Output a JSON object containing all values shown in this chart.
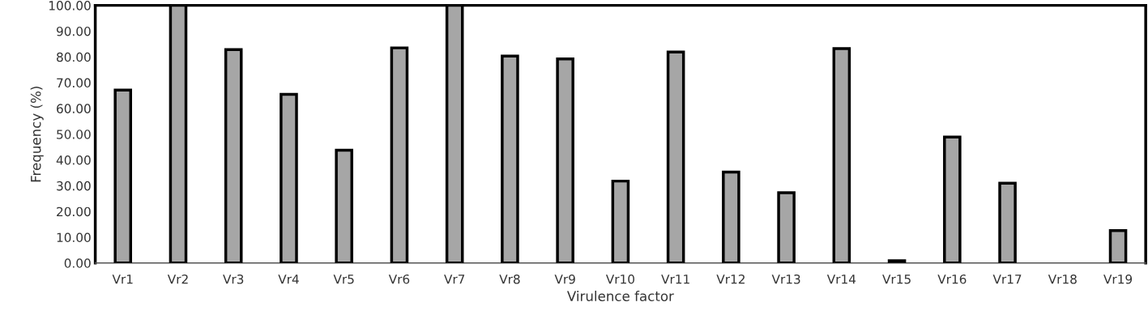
{
  "chart_data": {
    "type": "bar",
    "xlabel": "Virulence factor",
    "ylabel": "Frequency (%)",
    "categories": [
      "Vr1",
      "Vr2",
      "Vr3",
      "Vr4",
      "Vr5",
      "Vr6",
      "Vr7",
      "Vr8",
      "Vr9",
      "Vr10",
      "Vr11",
      "Vr12",
      "Vr13",
      "Vr14",
      "Vr15",
      "Vr16",
      "Vr17",
      "Vr18",
      "Vr19"
    ],
    "values": [
      67.1,
      100,
      82.8,
      65.5,
      43.8,
      83.5,
      100,
      80.3,
      79.2,
      31.8,
      81.9,
      35.3,
      27.3,
      83.2,
      0.9,
      48.9,
      31.0,
      0,
      12.6
    ],
    "color": "#a6a6a6",
    "ylim": [
      0,
      100
    ],
    "yticks": [
      {
        "value": 0,
        "label": "0.00"
      },
      {
        "value": 10,
        "label": "10.00"
      },
      {
        "value": 20,
        "label": "20.00"
      },
      {
        "value": 30,
        "label": "30.00"
      },
      {
        "value": 40,
        "label": "40.00"
      },
      {
        "value": 50,
        "label": "50.00"
      },
      {
        "value": 60,
        "label": "60.00"
      },
      {
        "value": 70,
        "label": "70.00"
      },
      {
        "value": 80,
        "label": "80.00"
      },
      {
        "value": 90,
        "label": "90.00"
      },
      {
        "value": 100,
        "label": "100.00"
      }
    ],
    "grid": false
  }
}
